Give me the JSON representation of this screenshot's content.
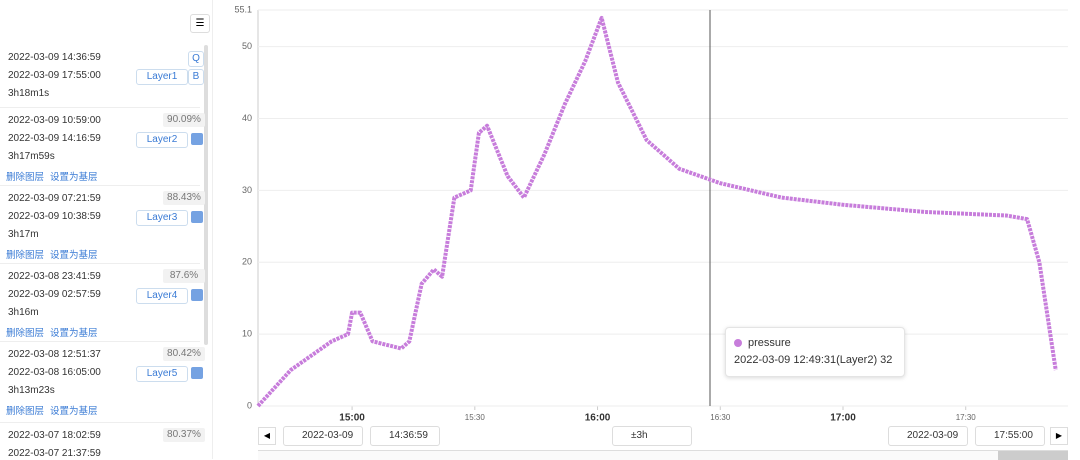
{
  "sidebar": {
    "layers": [
      {
        "start": "2022-03-09 14:36:59",
        "end": "2022-03-09 17:55:00",
        "duration": "3h18m1s",
        "layer": "Layer1",
        "buttons": [
          "Q",
          "B"
        ]
      },
      {
        "start": "2022-03-09 10:59:00",
        "end": "2022-03-09 14:16:59",
        "duration": "3h17m59s",
        "layer": "Layer2",
        "percent": "90.09%",
        "actions": [
          "删除图层",
          "设置为基层"
        ]
      },
      {
        "start": "2022-03-09 07:21:59",
        "end": "2022-03-09 10:38:59",
        "duration": "3h17m",
        "layer": "Layer3",
        "percent": "88.43%",
        "actions": [
          "删除图层",
          "设置为基层"
        ]
      },
      {
        "start": "2022-03-08 23:41:59",
        "end": "2022-03-09 02:57:59",
        "duration": "3h16m",
        "layer": "Layer4",
        "percent": "87.6%",
        "actions": [
          "删除图层",
          "设置为基层"
        ]
      },
      {
        "start": "2022-03-08 12:51:37",
        "end": "2022-03-08 16:05:00",
        "duration": "3h13m23s",
        "layer": "Layer5",
        "percent": "80.42%",
        "actions": [
          "删除图层",
          "设置为基层"
        ]
      },
      {
        "start": "2022-03-07 18:02:59",
        "end": "2022-03-07 21:37:59",
        "percent": "80.37%"
      }
    ]
  },
  "chart_data": {
    "type": "line",
    "series": [
      {
        "name": "pressure",
        "color": "#c77ddb",
        "x": [
          "14:37",
          "14:45",
          "14:55",
          "14:59",
          "15:00",
          "15:02",
          "15:05",
          "15:12",
          "15:14",
          "15:17",
          "15:20",
          "15:22",
          "15:25",
          "15:29",
          "15:31",
          "15:33",
          "15:38",
          "15:42",
          "15:47",
          "15:52",
          "15:57",
          "16:01",
          "16:05",
          "16:12",
          "16:20",
          "16:30",
          "16:45",
          "17:00",
          "17:20",
          "17:40",
          "17:45",
          "17:48",
          "17:52"
        ],
        "values": [
          0,
          5,
          9,
          10,
          13,
          13,
          9,
          8,
          9,
          17,
          19,
          18,
          29,
          30,
          38,
          39,
          32,
          29,
          35,
          42,
          48,
          54,
          45,
          37,
          33,
          31,
          29,
          28,
          27,
          26.5,
          26,
          20,
          5
        ]
      }
    ],
    "xlim": [
      "14:37",
      "17:55"
    ],
    "xticks": [
      "15:00",
      "15:30",
      "16:00",
      "16:30",
      "17:00",
      "17:30"
    ],
    "ylim": [
      0,
      55.1
    ],
    "yticks": [
      0,
      10,
      20,
      30,
      40,
      50,
      55.1
    ],
    "grid": true
  },
  "tooltip": {
    "series": "pressure",
    "text": "2022-03-09 12:49:31(Layer2) 32"
  },
  "controls": {
    "start_date": "2022-03-09",
    "start_time": "14:36:59",
    "range": "±3h",
    "end_date": "2022-03-09",
    "end_time": "17:55:00"
  }
}
